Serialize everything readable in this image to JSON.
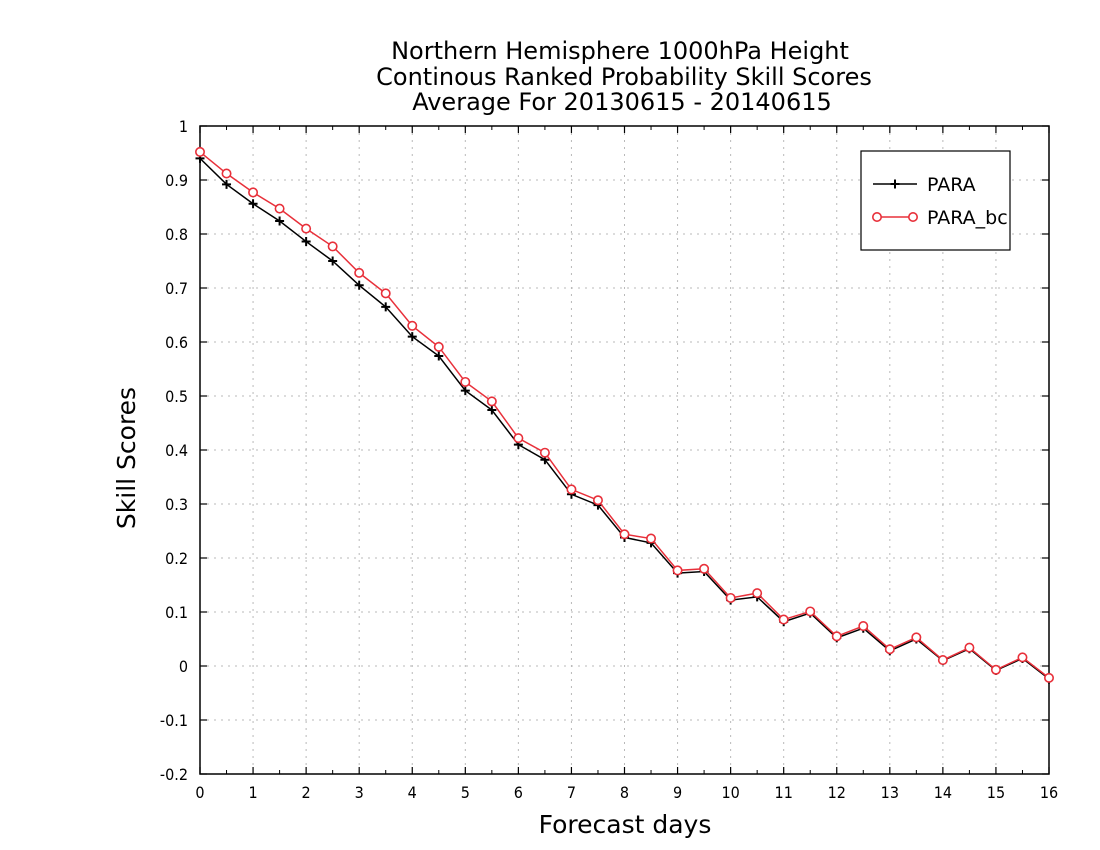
{
  "chart_data": {
    "type": "line",
    "title": [
      "Northern Hemisphere 1000hPa Height",
      "Continous Ranked Probability Skill Scores",
      "Average For 20130615 - 20140615"
    ],
    "xlabel": "Forecast days",
    "ylabel": "Skill Scores",
    "xlim": [
      0,
      16
    ],
    "ylim": [
      -0.2,
      1
    ],
    "xticks": [
      0,
      1,
      2,
      3,
      4,
      5,
      6,
      7,
      8,
      9,
      10,
      11,
      12,
      13,
      14,
      15,
      16
    ],
    "xtick_labels": [
      "0",
      "1",
      "2",
      "3",
      "4",
      "5",
      "6",
      "7",
      "8",
      "9",
      "10",
      "11",
      "12",
      "13",
      "14",
      "15",
      "16"
    ],
    "yticks": [
      -0.2,
      -0.1,
      0,
      0.1,
      0.2,
      0.3,
      0.4,
      0.5,
      0.6,
      0.7,
      0.8,
      0.9,
      1
    ],
    "ytick_labels": [
      "-0.2",
      "-0.1",
      "0",
      "0.1",
      "0.2",
      "0.3",
      "0.4",
      "0.5",
      "0.6",
      "0.7",
      "0.8",
      "0.9",
      "1"
    ],
    "grid": true,
    "legend_position": "top-right",
    "x": [
      0,
      0.5,
      1,
      1.5,
      2,
      2.5,
      3,
      3.5,
      4,
      4.5,
      5,
      5.5,
      6,
      6.5,
      7,
      7.5,
      8,
      8.5,
      9,
      9.5,
      10,
      10.5,
      11,
      11.5,
      12,
      12.5,
      13,
      13.5,
      14,
      14.5,
      15,
      15.5,
      16
    ],
    "series": [
      {
        "name": "PARA",
        "color": "#000000",
        "marker": "plus",
        "values": [
          0.94,
          0.892,
          0.856,
          0.824,
          0.786,
          0.75,
          0.705,
          0.665,
          0.61,
          0.574,
          0.51,
          0.474,
          0.41,
          0.382,
          0.318,
          0.298,
          0.238,
          0.228,
          0.172,
          0.175,
          0.122,
          0.128,
          0.082,
          0.098,
          0.052,
          0.07,
          0.028,
          0.05,
          0.01,
          0.032,
          -0.008,
          0.014,
          -0.024
        ]
      },
      {
        "name": "PARA_bc",
        "color": "#e8303a",
        "marker": "circle",
        "values": [
          0.952,
          0.912,
          0.877,
          0.847,
          0.81,
          0.777,
          0.728,
          0.69,
          0.63,
          0.591,
          0.526,
          0.49,
          0.422,
          0.395,
          0.327,
          0.307,
          0.244,
          0.236,
          0.177,
          0.18,
          0.126,
          0.135,
          0.086,
          0.101,
          0.055,
          0.074,
          0.031,
          0.053,
          0.011,
          0.034,
          -0.007,
          0.016,
          -0.022
        ]
      }
    ]
  }
}
